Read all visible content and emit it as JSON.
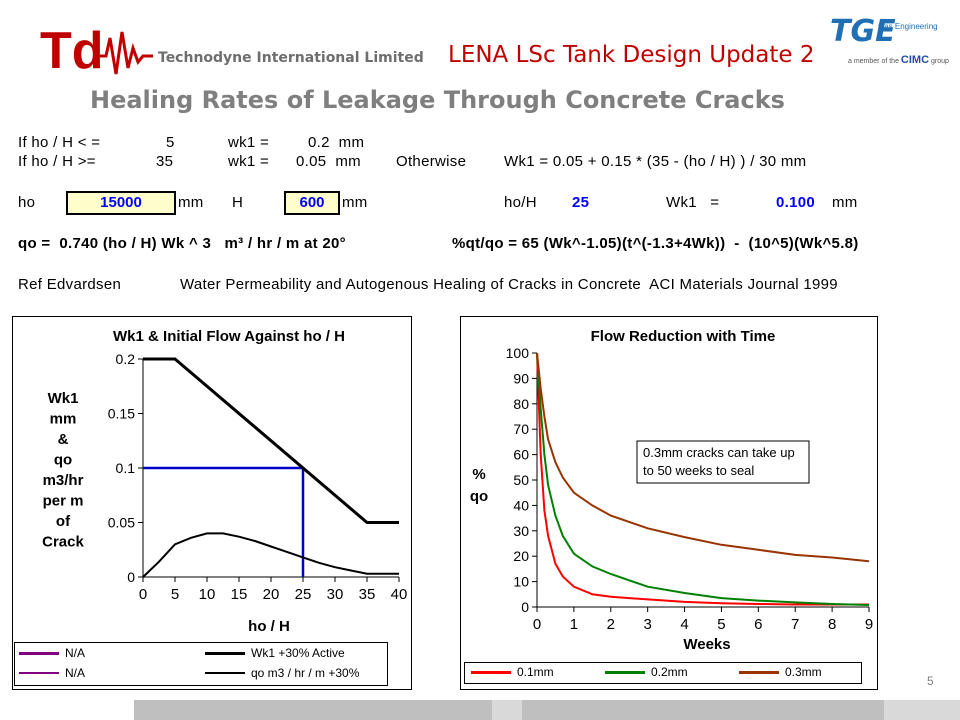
{
  "header": {
    "logo_text": "Td",
    "company": "Technodyne International Limited",
    "doc_title": "LENA LSc Tank Design Update 2",
    "partner_logo": "TGE",
    "partner_sub": "Gas Engineering",
    "partner_member": "a member of the",
    "partner_group": "CIMC",
    "partner_group_suffix": "group"
  },
  "slide_title": "Healing Rates of Leakage Through Concrete Cracks",
  "formulas": {
    "line1_a": "If ho / H < =",
    "line1_b": "5",
    "line1_c": "wk1 =",
    "line1_d": "0.2  mm",
    "line2_a": "If ho / H >=",
    "line2_b": "35",
    "line2_c": "wk1 =",
    "line2_d": "0.05  mm",
    "line2_e": "Otherwise",
    "line2_f": "Wk1 = 0.05 + 0.15 * (35 - (ho / H) ) / 30 mm",
    "ho_label": "ho",
    "ho_value": "15000",
    "ho_unit": "mm",
    "h_label": "H",
    "h_value": "600",
    "h_unit": "mm",
    "ratio_label": "ho/H",
    "ratio_value": "25",
    "wk1_label": "Wk1   =",
    "wk1_value": "0.100",
    "wk1_unit": "mm",
    "qo_formula": "qo =  0.740 (ho / H) Wk ^ 3   m³ / hr / m at 20°",
    "qt_formula": "%qt/qo = 65 (Wk^-1.05)(t^(-1.3+4Wk))  -  (10^5)(Wk^5.8)",
    "ref_a": "Ref Edvardsen",
    "ref_b": "Water Permeability and Autogenous Healing of Cracks in Concrete  ACI Materials Journal 1999"
  },
  "colors": {
    "title_red": "#c00000",
    "grey": "#7f7f7f",
    "blue_value": "#0000ff",
    "input_fill": "#ffffcc",
    "series_01": "#ff0000",
    "series_02": "#008000",
    "series_03": "#993300",
    "na_purple": "#800080",
    "marker_blue": "#0000cc"
  },
  "chart_data": [
    {
      "type": "line",
      "title": "Wk1 & Initial Flow Against ho / H",
      "xlabel": "ho / H",
      "ylabel": [
        "Wk1",
        "mm",
        "&",
        "qo",
        "m3/hr",
        "per m",
        "of",
        "Crack"
      ],
      "xlim": [
        0,
        40
      ],
      "ylim": [
        0,
        0.2
      ],
      "xticks": [
        "0",
        "5",
        "10",
        "15",
        "20",
        "25",
        "30",
        "35",
        "40"
      ],
      "yticks": [
        "0",
        "0.05",
        "0.1",
        "0.15",
        "0.2"
      ],
      "series": [
        {
          "name": "Wk1 +30% Active",
          "color": "#000000",
          "x": [
            0,
            5,
            35,
            40
          ],
          "y": [
            0.2,
            0.2,
            0.05,
            0.05
          ]
        },
        {
          "name": "qo m3 / hr / m +30%",
          "color": "#000000",
          "x": [
            0,
            2.5,
            5,
            7.5,
            10,
            12.5,
            15,
            17.5,
            20,
            22.5,
            25,
            27.5,
            30,
            32.5,
            35,
            37.5,
            40
          ],
          "y": [
            0,
            0.014,
            0.03,
            0.036,
            0.04,
            0.04,
            0.037,
            0.033,
            0.028,
            0.023,
            0.018,
            0.013,
            0.009,
            0.006,
            0.003,
            0.003,
            0.003
          ]
        },
        {
          "name": "N/A",
          "color": "#800080",
          "x": [],
          "y": []
        },
        {
          "name": "N/A",
          "color": "#800080",
          "x": [],
          "y": []
        }
      ],
      "marker": {
        "x": 25,
        "y": 0.1,
        "color": "#0000cc"
      },
      "legend": "bottom"
    },
    {
      "type": "line",
      "title": "Flow Reduction with Time",
      "xlabel": "Weeks",
      "ylabel": [
        "%",
        "qo"
      ],
      "xlim": [
        0,
        9
      ],
      "ylim": [
        0,
        100
      ],
      "xticks": [
        "0",
        "1",
        "2",
        "3",
        "4",
        "5",
        "6",
        "7",
        "8",
        "9"
      ],
      "yticks": [
        "0",
        "10",
        "20",
        "30",
        "40",
        "50",
        "60",
        "70",
        "80",
        "90",
        "100"
      ],
      "annotation": [
        "0.3mm cracks can take up",
        "to 50 weeks to seal"
      ],
      "series": [
        {
          "name": "0.1mm",
          "color": "#ff0000",
          "x": [
            0,
            0.1,
            0.2,
            0.3,
            0.5,
            0.7,
            1,
            1.5,
            2,
            3,
            4,
            5,
            6,
            7,
            8,
            9
          ],
          "y": [
            100,
            60,
            38,
            28,
            17,
            12,
            8,
            5,
            4,
            3,
            2,
            1.5,
            1.2,
            1,
            1,
            1
          ]
        },
        {
          "name": "0.2mm",
          "color": "#008000",
          "x": [
            0,
            0.1,
            0.2,
            0.3,
            0.5,
            0.7,
            1,
            1.5,
            2,
            3,
            4,
            5,
            6,
            7,
            8,
            9
          ],
          "y": [
            100,
            78,
            60,
            48,
            36,
            28,
            21,
            16,
            13,
            8,
            5.5,
            3.5,
            2.5,
            1.8,
            1.2,
            0.8
          ]
        },
        {
          "name": "0.3mm",
          "color": "#993300",
          "x": [
            0,
            0.1,
            0.2,
            0.3,
            0.5,
            0.7,
            1,
            1.5,
            2,
            3,
            4,
            5,
            6,
            7,
            8,
            9
          ],
          "y": [
            100,
            86,
            75,
            66,
            57,
            51,
            45,
            40,
            36,
            31,
            27.5,
            24.5,
            22.5,
            20.5,
            19.5,
            18
          ]
        }
      ],
      "legend": "bottom"
    }
  ],
  "page_number": "5"
}
